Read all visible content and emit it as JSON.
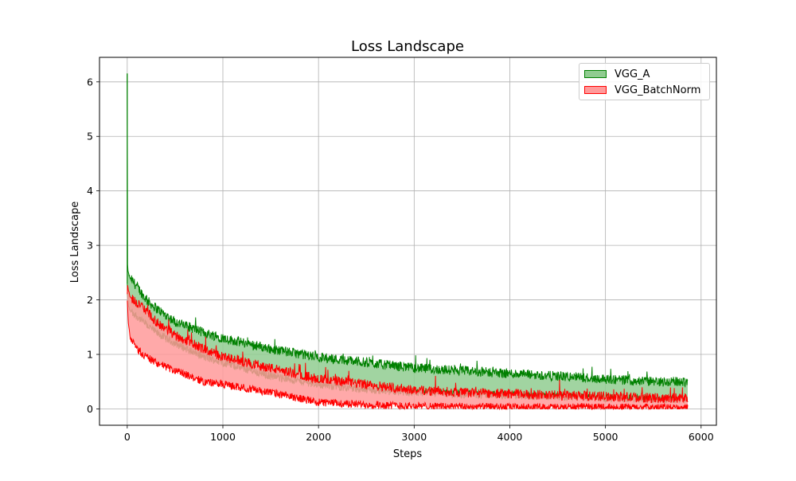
{
  "chart_data": {
    "type": "area",
    "title": "Loss Landscape",
    "xlabel": "Steps",
    "ylabel": "Loss Landscape",
    "xlim": [
      -290,
      6160
    ],
    "ylim": [
      -0.3,
      6.45
    ],
    "xticks": [
      0,
      1000,
      2000,
      3000,
      4000,
      5000,
      6000
    ],
    "yticks": [
      0,
      1,
      2,
      3,
      4,
      5,
      6
    ],
    "grid": true,
    "legend_position": "top-right",
    "series": [
      {
        "name": "VGG_A",
        "color": "#008000",
        "fill": "#90cc90",
        "x": [
          0,
          3,
          10,
          30,
          100,
          200,
          300,
          500,
          800,
          1000,
          1500,
          2000,
          2500,
          3000,
          3500,
          4000,
          4500,
          5000,
          5500,
          5860
        ],
        "upper": [
          6.15,
          2.65,
          2.5,
          2.4,
          2.25,
          2.0,
          1.85,
          1.6,
          1.4,
          1.3,
          1.1,
          0.95,
          0.85,
          0.75,
          0.7,
          0.65,
          0.6,
          0.55,
          0.5,
          0.5
        ],
        "lower": [
          2.3,
          2.1,
          1.9,
          1.8,
          1.7,
          1.55,
          1.4,
          1.2,
          0.95,
          0.85,
          0.6,
          0.45,
          0.35,
          0.3,
          0.27,
          0.25,
          0.22,
          0.2,
          0.18,
          0.17
        ]
      },
      {
        "name": "VGG_BatchNorm",
        "color": "#ff0000",
        "fill": "#ff9a9a",
        "x": [
          0,
          3,
          10,
          30,
          100,
          200,
          300,
          500,
          800,
          1000,
          1500,
          2000,
          2500,
          3000,
          3500,
          4000,
          4500,
          5000,
          5500,
          5860
        ],
        "upper": [
          2.1,
          2.3,
          2.2,
          2.05,
          1.95,
          1.8,
          1.6,
          1.35,
          1.1,
          0.95,
          0.75,
          0.55,
          0.45,
          0.35,
          0.3,
          0.28,
          0.25,
          0.23,
          0.2,
          0.2
        ],
        "lower": [
          2.0,
          1.9,
          1.6,
          1.3,
          1.1,
          0.95,
          0.85,
          0.7,
          0.5,
          0.45,
          0.3,
          0.12,
          0.08,
          0.05,
          0.04,
          0.03,
          0.03,
          0.03,
          0.02,
          0.02
        ]
      }
    ]
  }
}
